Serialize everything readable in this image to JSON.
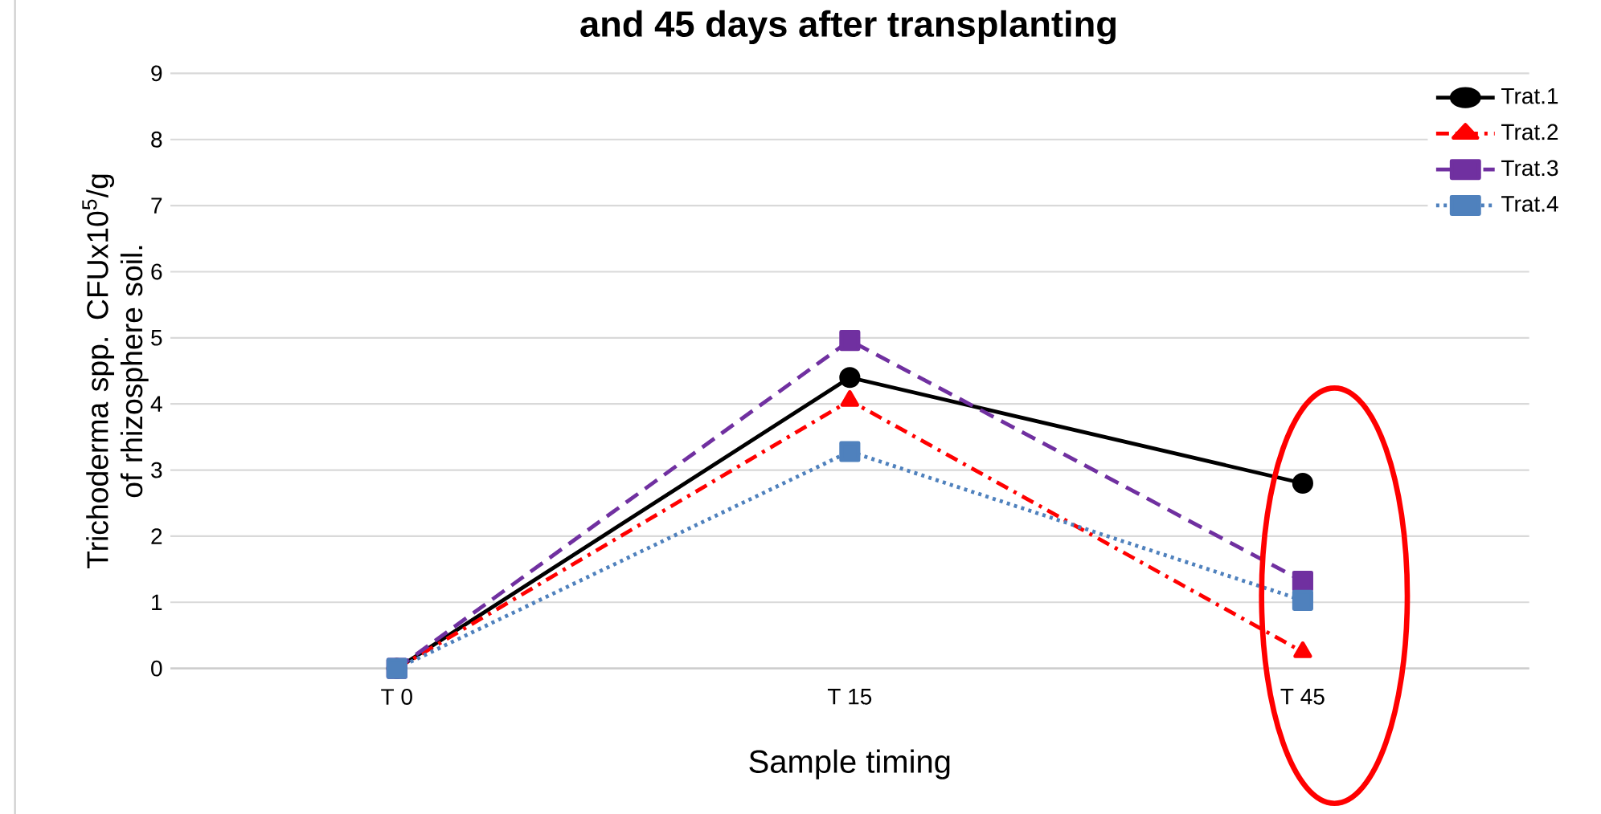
{
  "chart_data": {
    "type": "line",
    "title": "and 45 days after transplanting",
    "xlabel": "Sample timing",
    "ylabel": "Trichoderma spp. CFUx10$^{5}$/g  of rhizosphere soil.",
    "categories": [
      "T 0",
      "T 15",
      "T 45"
    ],
    "ylim": [
      0,
      9
    ],
    "yticks": [
      0,
      1,
      2,
      3,
      4,
      5,
      6,
      7,
      8,
      9
    ],
    "grid": "y",
    "legend": "top right",
    "series": [
      {
        "name": "Trat.1",
        "color": "#000000",
        "marker": "circle",
        "line_style": "solid",
        "values": [
          0,
          4.4,
          2.8
        ]
      },
      {
        "name": "Trat.2",
        "color": "#ff0000",
        "marker": "triangle",
        "line_style": "dashdot",
        "values": [
          0,
          4.05,
          0.25
        ]
      },
      {
        "name": "Trat.3",
        "color": "#7030a0",
        "marker": "square",
        "line_style": "dashed",
        "values": [
          0,
          4.96,
          1.32
        ]
      },
      {
        "name": "Trat.4",
        "color": "#4f81bd",
        "marker": "square",
        "line_style": "dotted",
        "values": [
          0,
          3.28,
          1.03
        ]
      }
    ]
  }
}
